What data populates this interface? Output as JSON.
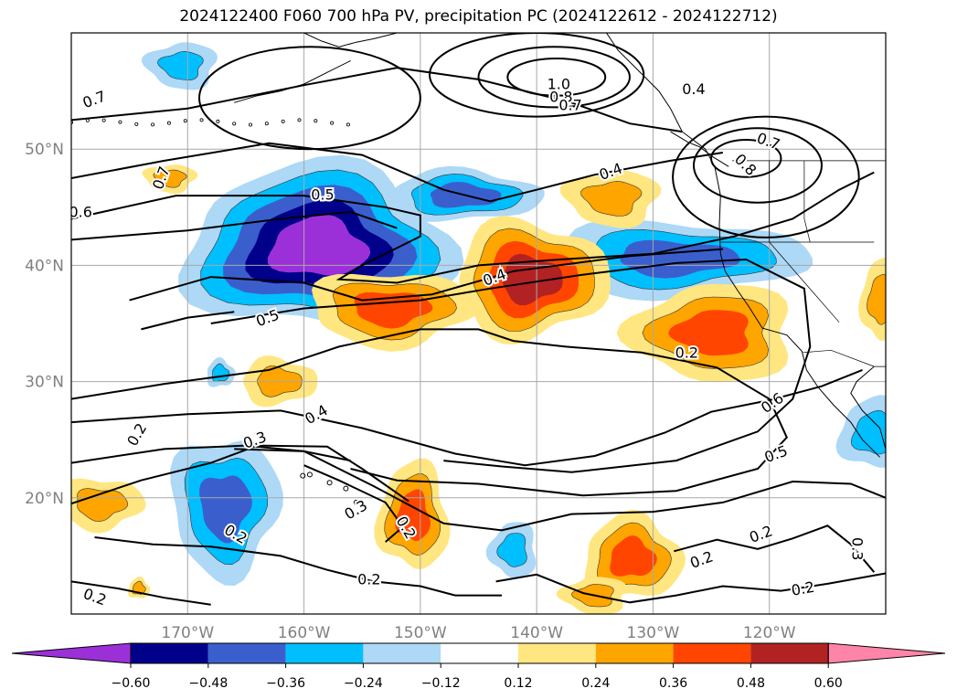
{
  "title": "2024122400 F060 700 hPa PV, precipitation PC (2024122612 - 2024122712)",
  "map": {
    "lon_range": [
      -180,
      -110
    ],
    "lat_range": [
      10,
      60
    ],
    "lat_labels": [
      "50°N",
      "40°N",
      "30°N",
      "20°N"
    ],
    "lon_labels": [
      "170°W",
      "160°W",
      "150°W",
      "140°W",
      "130°W",
      "120°W"
    ],
    "contour_labels": [
      {
        "text": "0.7",
        "lon": -178.0,
        "lat": 54.2,
        "rot": -20
      },
      {
        "text": "1.0",
        "lon": -138.1,
        "lat": 55.5,
        "rot": 0
      },
      {
        "text": "0.8",
        "lon": -137.9,
        "lat": 54.4,
        "rot": 0
      },
      {
        "text": "0.7",
        "lon": -137.1,
        "lat": 53.7,
        "rot": 0
      },
      {
        "text": "0.4",
        "lon": -126.5,
        "lat": 55.1,
        "rot": 0
      },
      {
        "text": "0.7",
        "lon": -120.1,
        "lat": 50.6,
        "rot": 20
      },
      {
        "text": "0.8",
        "lon": -122.1,
        "lat": 48.6,
        "rot": 45
      },
      {
        "text": "0.7",
        "lon": -172.2,
        "lat": 47.5,
        "rot": -70
      },
      {
        "text": "0.6",
        "lon": -179.2,
        "lat": 44.5,
        "rot": 0
      },
      {
        "text": "0.5",
        "lon": -158.4,
        "lat": 46.0,
        "rot": 0
      },
      {
        "text": "0.4",
        "lon": -133.6,
        "lat": 48.0,
        "rot": -20
      },
      {
        "text": "0.4",
        "lon": -143.6,
        "lat": 38.9,
        "rot": -20
      },
      {
        "text": "0.5",
        "lon": -163.1,
        "lat": 35.4,
        "rot": -20
      },
      {
        "text": "0.2",
        "lon": -127.1,
        "lat": 32.4,
        "rot": 0
      },
      {
        "text": "0.6",
        "lon": -119.7,
        "lat": 28.1,
        "rot": -35
      },
      {
        "text": "0.4",
        "lon": -158.9,
        "lat": 27.1,
        "rot": -30
      },
      {
        "text": "0.3",
        "lon": -164.2,
        "lat": 24.9,
        "rot": -20
      },
      {
        "text": "0.2",
        "lon": -174.3,
        "lat": 25.4,
        "rot": -60
      },
      {
        "text": "0.5",
        "lon": -119.4,
        "lat": 23.7,
        "rot": -20
      },
      {
        "text": "0.3",
        "lon": -155.5,
        "lat": 18.9,
        "rot": -30
      },
      {
        "text": "0.2",
        "lon": -151.3,
        "lat": 17.4,
        "rot": 60
      },
      {
        "text": "0.2",
        "lon": -165.9,
        "lat": 16.8,
        "rot": 30
      },
      {
        "text": "0.2",
        "lon": -125.8,
        "lat": 14.6,
        "rot": -20
      },
      {
        "text": "0.2",
        "lon": -120.7,
        "lat": 16.8,
        "rot": -20
      },
      {
        "text": "0.3",
        "lon": -112.5,
        "lat": 15.6,
        "rot": 90
      },
      {
        "text": "0.2",
        "lon": -154.4,
        "lat": 12.9,
        "rot": 0
      },
      {
        "text": "0.2",
        "lon": -178.0,
        "lat": 11.4,
        "rot": 20
      },
      {
        "text": "0.2",
        "lon": -117.1,
        "lat": 12.1,
        "rot": -10
      }
    ]
  },
  "colorbar": {
    "ticks": [
      "−0.60",
      "−0.48",
      "−0.36",
      "−0.24",
      "−0.12",
      "0.12",
      "0.24",
      "0.36",
      "0.48",
      "0.60"
    ],
    "colors": [
      "#9b30d9",
      "#00008b",
      "#3a5fcd",
      "#00bfff",
      "#add8f6",
      "#ffffff",
      "#ffe680",
      "#ffa500",
      "#ff4500",
      "#b22222",
      "#ff85a8"
    ]
  },
  "blobs": [
    {
      "lon": -158.8,
      "lat": 41.5,
      "rx": 11.5,
      "ry": 7.0,
      "sign": -1,
      "levels": 5
    },
    {
      "lon": -146.3,
      "lat": 46.0,
      "rx": 6.5,
      "ry": 2.2,
      "sign": -1,
      "levels": 3
    },
    {
      "lon": -128.0,
      "lat": 40.6,
      "rx": 11.0,
      "ry": 3.2,
      "sign": -1,
      "levels": 3
    },
    {
      "lon": -166.8,
      "lat": 19.3,
      "rx": 4.6,
      "ry": 6.0,
      "sign": -1,
      "levels": 3
    },
    {
      "lon": -170.5,
      "lat": 57.2,
      "rx": 3.0,
      "ry": 2.0,
      "sign": -1,
      "levels": 2
    },
    {
      "lon": -142.0,
      "lat": 15.5,
      "rx": 2.0,
      "ry": 2.4,
      "sign": -1,
      "levels": 2
    },
    {
      "lon": -111.0,
      "lat": 25.5,
      "rx": 3.0,
      "ry": 3.0,
      "sign": -1,
      "levels": 2
    },
    {
      "lon": -167.2,
      "lat": 30.7,
      "rx": 1.2,
      "ry": 1.2,
      "sign": -1,
      "levels": 2
    },
    {
      "lon": -140.5,
      "lat": 38.8,
      "rx": 6.5,
      "ry": 5.0,
      "sign": 1,
      "levels": 4
    },
    {
      "lon": -152.5,
      "lat": 36.3,
      "rx": 7.0,
      "ry": 3.2,
      "sign": 1,
      "levels": 3
    },
    {
      "lon": -133.5,
      "lat": 45.8,
      "rx": 4.0,
      "ry": 2.4,
      "sign": 1,
      "levels": 2
    },
    {
      "lon": -124.8,
      "lat": 34.2,
      "rx": 7.0,
      "ry": 4.2,
      "sign": 1,
      "levels": 3
    },
    {
      "lon": -150.6,
      "lat": 18.4,
      "rx": 3.0,
      "ry": 4.6,
      "sign": 1,
      "levels": 3
    },
    {
      "lon": -131.8,
      "lat": 14.8,
      "rx": 4.2,
      "ry": 3.6,
      "sign": 1,
      "levels": 3
    },
    {
      "lon": -162.2,
      "lat": 30.0,
      "rx": 3.2,
      "ry": 2.0,
      "sign": 1,
      "levels": 2
    },
    {
      "lon": -177.5,
      "lat": 19.5,
      "rx": 3.6,
      "ry": 2.2,
      "sign": 1,
      "levels": 2
    },
    {
      "lon": -171.5,
      "lat": 47.5,
      "rx": 2.2,
      "ry": 1.2,
      "sign": 1,
      "levels": 2
    },
    {
      "lon": -135.0,
      "lat": 11.6,
      "rx": 2.8,
      "ry": 1.6,
      "sign": 1,
      "levels": 2
    },
    {
      "lon": -110.5,
      "lat": 37.0,
      "rx": 1.6,
      "ry": 3.5,
      "sign": 1,
      "levels": 2
    },
    {
      "lon": -174.2,
      "lat": 12.2,
      "rx": 0.9,
      "ry": 0.9,
      "sign": 1,
      "levels": 2
    }
  ]
}
